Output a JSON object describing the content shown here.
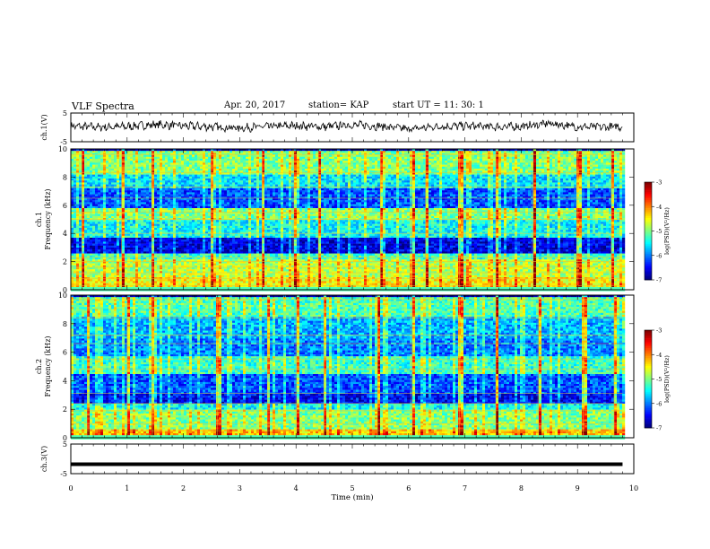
{
  "header": {
    "title": "VLF Spectra",
    "date": "Apr. 20, 2017",
    "station": "station= KAP",
    "start_ut": "start  UT  =   11: 30: 1"
  },
  "chart_data": [
    {
      "type": "line",
      "panel": "ch1-waveform",
      "ylabel": "ch.1(V)",
      "ylim": [
        -5,
        5
      ],
      "yticks": [
        "5",
        "-5"
      ],
      "x_range": [
        0,
        9.8
      ],
      "shape": "noisy waveform",
      "points": [
        [
          0,
          0.4
        ],
        [
          0.5,
          0.1
        ],
        [
          1,
          0.3
        ],
        [
          1.5,
          1.0
        ],
        [
          2,
          0.5
        ],
        [
          2.5,
          0.2
        ],
        [
          3,
          -0.2
        ],
        [
          3.5,
          0.3
        ],
        [
          4,
          0.6
        ],
        [
          4.5,
          0.2
        ],
        [
          5,
          0.9
        ],
        [
          5.5,
          0.4
        ],
        [
          6,
          -0.6
        ],
        [
          6.5,
          0.3
        ],
        [
          7,
          0.5
        ],
        [
          7.5,
          0.2
        ],
        [
          8,
          0.3
        ],
        [
          8.5,
          1.4
        ],
        [
          9,
          0.2
        ],
        [
          9.5,
          0.1
        ],
        [
          9.8,
          0.3
        ]
      ]
    },
    {
      "type": "heatmap",
      "panel": "ch1-spectrogram",
      "xlabel": "",
      "ylabel": "ch.1\nFrequency (kHz)",
      "xlim": [
        0,
        10
      ],
      "ylim": [
        0,
        10
      ],
      "yticks": [
        "0",
        "2",
        "4",
        "6",
        "8",
        "10"
      ],
      "x_range": [
        0,
        9.8
      ],
      "colorbar": {
        "label": "log(PSD)(V²/Hz)",
        "range": [
          -7,
          -3
        ],
        "ticks": [
          "-3",
          "-4",
          "-5",
          "-6",
          "-7"
        ]
      },
      "bands": [
        {
          "from": 0,
          "to": 1,
          "level": -4.5
        },
        {
          "from": 1,
          "to": 2.2,
          "level": -4.8
        },
        {
          "from": 2.2,
          "to": 2.7,
          "level": -5.3
        },
        {
          "from": 2.7,
          "to": 3.7,
          "level": -6.6
        },
        {
          "from": 3.7,
          "to": 5,
          "level": -5.5
        },
        {
          "from": 5,
          "to": 5.8,
          "level": -5.0
        },
        {
          "from": 5.8,
          "to": 7.2,
          "level": -6.2
        },
        {
          "from": 7.2,
          "to": 8.3,
          "level": -5.6
        },
        {
          "from": 8.3,
          "to": 10,
          "level": -5.0
        }
      ],
      "tones_khz": [
        0.3,
        0.8,
        1.2,
        1.6,
        2.0,
        2.3,
        4.0,
        5.0,
        5.5,
        6.5,
        7.3,
        8.3,
        9.6
      ],
      "bursts_min": [
        0.2,
        0.9,
        1.45,
        2.5,
        3.4,
        3.95,
        4.4,
        5.5,
        6.05,
        6.3,
        6.9,
        7.55,
        8.2,
        9.0,
        9.6
      ]
    },
    {
      "type": "heatmap",
      "panel": "ch2-spectrogram",
      "xlabel": "",
      "ylabel": "ch.2\nFrequency (kHz)",
      "xlim": [
        0,
        10
      ],
      "ylim": [
        0,
        10
      ],
      "yticks": [
        "0",
        "2",
        "4",
        "6",
        "8",
        "10"
      ],
      "x_range": [
        0,
        9.8
      ],
      "colorbar": {
        "label": "log(PSD)(V²/Hz)",
        "range": [
          -7,
          -3
        ],
        "ticks": [
          "-3",
          "-4",
          "-5",
          "-6",
          "-7"
        ]
      },
      "bands": [
        {
          "from": 0,
          "to": 0.6,
          "level": -4.3
        },
        {
          "from": 0.6,
          "to": 2.0,
          "level": -5.0
        },
        {
          "from": 2.0,
          "to": 2.5,
          "level": -5.5
        },
        {
          "from": 2.5,
          "to": 3.2,
          "level": -6.5
        },
        {
          "from": 3.2,
          "to": 4.5,
          "level": -6.2
        },
        {
          "from": 4.5,
          "to": 5.8,
          "level": -5.3
        },
        {
          "from": 5.8,
          "to": 7.0,
          "level": -6.0
        },
        {
          "from": 7.0,
          "to": 8.5,
          "level": -5.8
        },
        {
          "from": 8.5,
          "to": 10,
          "level": -5.2
        }
      ],
      "tones_khz": [
        0.5,
        1.0,
        1.9,
        2.4,
        3.1,
        4.8,
        5.5,
        6.6,
        7.2,
        8.4,
        9.7
      ],
      "bursts_min": [
        0.3,
        1.0,
        1.45,
        2.6,
        3.5,
        4.0,
        4.5,
        5.45,
        6.05,
        6.9,
        7.55,
        8.3,
        9.1,
        9.65
      ]
    },
    {
      "type": "line",
      "panel": "ch3-waveform",
      "ylabel": "ch.3(V)",
      "ylim": [
        -5,
        5
      ],
      "yticks": [
        "5",
        "-5"
      ],
      "x": [
        0,
        9.8
      ],
      "values": [
        -1.8,
        -1.8
      ]
    }
  ],
  "time_axis": {
    "label": "Time (min)",
    "ticks": [
      "0",
      "1",
      "2",
      "3",
      "4",
      "5",
      "6",
      "7",
      "8",
      "9",
      "10"
    ]
  }
}
